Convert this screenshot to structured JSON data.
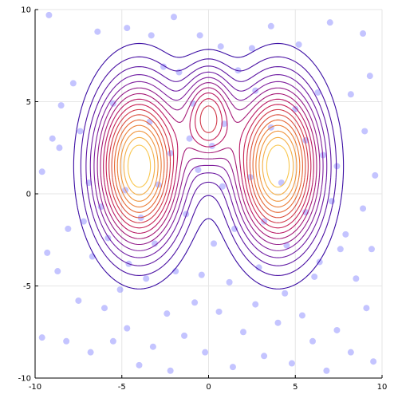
{
  "chart_data": {
    "type": "scatter",
    "title": "",
    "xlabel": "",
    "ylabel": "",
    "xlim": [
      -10,
      10
    ],
    "ylim": [
      -10,
      10
    ],
    "xticks": [
      -10,
      -5,
      0,
      5,
      10
    ],
    "yticks": [
      -10,
      -5,
      0,
      5,
      10
    ],
    "xtick_labels": [
      "-10",
      "-5",
      "0",
      "5",
      "10"
    ],
    "ytick_labels": [
      "-10",
      "-5",
      "0",
      "5",
      "10"
    ],
    "grid": true,
    "legend": "none",
    "overlay": {
      "type": "contour",
      "description": "three-mode density contours",
      "components": [
        {
          "center": [
            -4,
            1.5
          ],
          "sx": 1.7,
          "sy": 3.0,
          "w": 1.0
        },
        {
          "center": [
            4,
            1.5
          ],
          "sx": 1.7,
          "sy": 3.0,
          "w": 1.0
        },
        {
          "center": [
            0,
            4.2
          ],
          "sx": 1.0,
          "sy": 1.8,
          "w": 0.55
        }
      ],
      "n_levels": 16,
      "colormap": [
        "#3a0ca3",
        "#7b1fa2",
        "#c2185b",
        "#e86a2e",
        "#f9c74f"
      ]
    },
    "scatter_color": "#6464ff",
    "series": [
      {
        "values": [
          [
            -9.2,
            9.7
          ],
          [
            -8.5,
            4.8
          ],
          [
            -9.0,
            3.0
          ],
          [
            -9.6,
            1.2
          ],
          [
            -8.6,
            2.5
          ],
          [
            -7.8,
            6.0
          ],
          [
            -7.2,
            -1.5
          ],
          [
            -9.3,
            -3.2
          ],
          [
            -8.7,
            -4.2
          ],
          [
            -9.6,
            -7.8
          ],
          [
            -8.2,
            -8.0
          ],
          [
            -7.5,
            -5.8
          ],
          [
            -6.8,
            -8.6
          ],
          [
            -6.0,
            -6.2
          ],
          [
            -5.5,
            -8.0
          ],
          [
            -4.7,
            -7.3
          ],
          [
            -4.0,
            -9.3
          ],
          [
            -3.2,
            -8.3
          ],
          [
            -2.4,
            -6.5
          ],
          [
            -2.2,
            -9.6
          ],
          [
            -1.4,
            -7.7
          ],
          [
            -0.8,
            -5.9
          ],
          [
            -0.2,
            -8.6
          ],
          [
            0.6,
            -6.4
          ],
          [
            1.4,
            -9.4
          ],
          [
            2.0,
            -7.5
          ],
          [
            2.7,
            -6.0
          ],
          [
            3.2,
            -8.8
          ],
          [
            4.0,
            -7.0
          ],
          [
            4.8,
            -9.2
          ],
          [
            5.4,
            -6.6
          ],
          [
            6.0,
            -8.0
          ],
          [
            6.8,
            -9.6
          ],
          [
            7.4,
            -7.4
          ],
          [
            8.2,
            -8.6
          ],
          [
            9.1,
            -6.2
          ],
          [
            9.5,
            -9.1
          ],
          [
            8.5,
            -4.6
          ],
          [
            9.4,
            -3.0
          ],
          [
            7.9,
            -2.2
          ],
          [
            8.9,
            -0.8
          ],
          [
            9.6,
            1.0
          ],
          [
            9.0,
            3.4
          ],
          [
            8.2,
            5.4
          ],
          [
            9.3,
            6.4
          ],
          [
            8.9,
            8.7
          ],
          [
            7.0,
            9.3
          ],
          [
            5.2,
            8.1
          ],
          [
            3.6,
            9.1
          ],
          [
            2.5,
            7.9
          ],
          [
            -2.0,
            9.6
          ],
          [
            -3.3,
            8.6
          ],
          [
            -4.7,
            9.0
          ],
          [
            -6.4,
            8.8
          ],
          [
            -2.6,
            6.9
          ],
          [
            -1.7,
            6.6
          ],
          [
            1.7,
            6.7
          ],
          [
            -7.4,
            3.4
          ],
          [
            -6.9,
            0.6
          ],
          [
            -5.8,
            -2.4
          ],
          [
            -4.6,
            -3.8
          ],
          [
            -3.1,
            -2.7
          ],
          [
            -5.5,
            4.9
          ],
          [
            -3.4,
            3.9
          ],
          [
            -4.8,
            0.2
          ],
          [
            -2.9,
            0.5
          ],
          [
            -2.2,
            2.2
          ],
          [
            -3.9,
            -1.3
          ],
          [
            -6.2,
            -0.7
          ],
          [
            -1.3,
            -1.1
          ],
          [
            -0.6,
            1.3
          ],
          [
            0.3,
            -2.7
          ],
          [
            0.8,
            0.4
          ],
          [
            1.5,
            -1.9
          ],
          [
            2.4,
            0.9
          ],
          [
            3.2,
            -1.5
          ],
          [
            4.5,
            -2.8
          ],
          [
            5.6,
            -1.0
          ],
          [
            6.6,
            2.1
          ],
          [
            5.0,
            4.6
          ],
          [
            3.6,
            3.6
          ],
          [
            2.7,
            5.6
          ],
          [
            6.3,
            5.5
          ],
          [
            7.1,
            -0.4
          ],
          [
            6.4,
            -3.7
          ],
          [
            4.2,
            0.6
          ],
          [
            5.6,
            2.9
          ],
          [
            -0.9,
            4.9
          ],
          [
            0.9,
            3.8
          ],
          [
            0.2,
            2.6
          ],
          [
            -0.5,
            8.6
          ],
          [
            0.7,
            8.0
          ],
          [
            -1.1,
            3.0
          ],
          [
            -8.1,
            -1.9
          ],
          [
            -6.7,
            -3.4
          ],
          [
            -5.1,
            -5.2
          ],
          [
            -3.6,
            -4.6
          ],
          [
            -1.9,
            -4.2
          ],
          [
            -0.4,
            -4.4
          ],
          [
            1.2,
            -4.8
          ],
          [
            2.9,
            -4.0
          ],
          [
            4.4,
            -5.4
          ],
          [
            6.1,
            -4.5
          ],
          [
            7.6,
            -3.0
          ],
          [
            7.4,
            1.5
          ]
        ]
      }
    ]
  }
}
